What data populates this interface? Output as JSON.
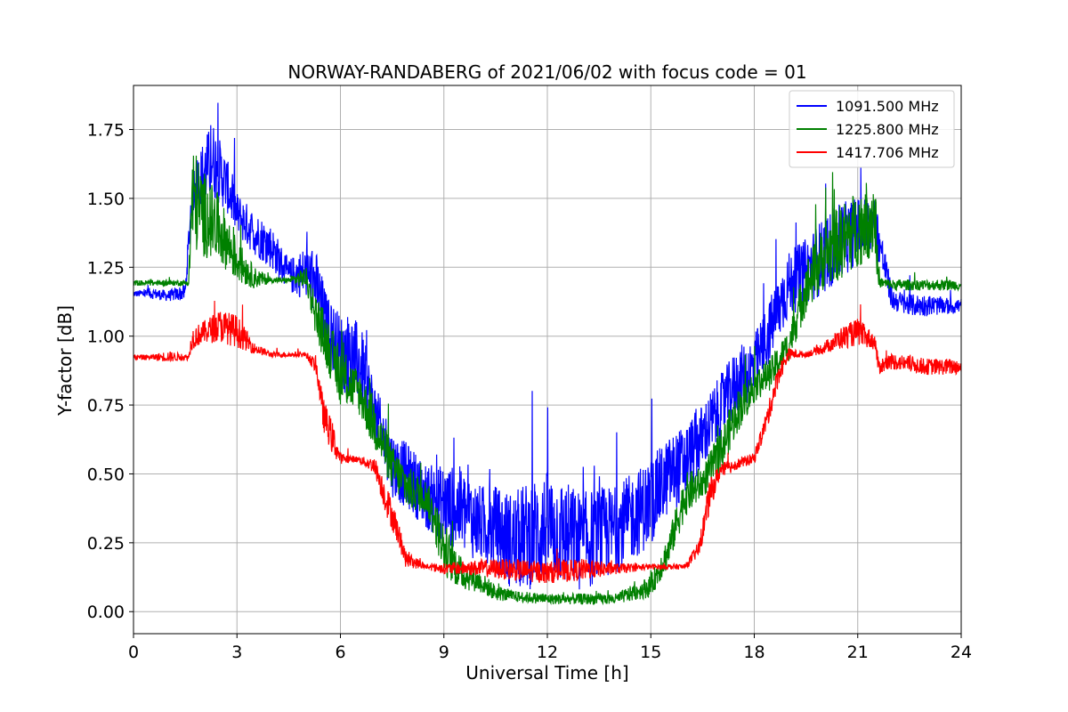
{
  "chart_data": {
    "type": "line",
    "title": "NORWAY-RANDABERG of 2021/06/02 with focus code = 01",
    "xlabel": "Universal Time [h]",
    "ylabel": "Y-factor [dB]",
    "xlim": [
      0,
      24
    ],
    "ylim": [
      -0.08,
      1.91
    ],
    "xticks": [
      0,
      3,
      6,
      9,
      12,
      15,
      18,
      21,
      24
    ],
    "xtick_labels": [
      "0",
      "3",
      "6",
      "9",
      "12",
      "15",
      "18",
      "21",
      "24"
    ],
    "yticks": [
      0.0,
      0.25,
      0.5,
      0.75,
      1.0,
      1.25,
      1.5,
      1.75
    ],
    "ytick_labels": [
      "0.00",
      "0.25",
      "0.50",
      "0.75",
      "1.00",
      "1.25",
      "1.50",
      "1.75"
    ],
    "grid": true,
    "legend_position": "top-right",
    "series": [
      {
        "name": "1091.500 MHz",
        "color": "#0000ff",
        "x": [
          0,
          0.5,
          1.0,
          1.5,
          1.7,
          2.0,
          2.3,
          2.7,
          3.0,
          3.5,
          4.0,
          4.5,
          5.0,
          5.3,
          5.6,
          6.0,
          6.3,
          6.6,
          7.0,
          7.5,
          8.0,
          8.5,
          9.0,
          9.5,
          10.0,
          10.5,
          11.0,
          11.5,
          12.0,
          12.5,
          13.0,
          13.5,
          14.0,
          14.5,
          15.0,
          15.5,
          16.0,
          16.5,
          17.0,
          17.5,
          18.0,
          18.5,
          19.0,
          19.5,
          20.0,
          20.5,
          21.0,
          21.5,
          22.0,
          22.5,
          23.0,
          23.5,
          24.0
        ],
        "y": [
          1.15,
          1.15,
          1.14,
          1.15,
          1.5,
          1.55,
          1.6,
          1.52,
          1.42,
          1.35,
          1.3,
          1.2,
          1.2,
          1.15,
          1.0,
          0.9,
          0.88,
          0.85,
          0.7,
          0.5,
          0.45,
          0.38,
          0.35,
          0.32,
          0.28,
          0.25,
          0.2,
          0.22,
          0.25,
          0.22,
          0.2,
          0.22,
          0.25,
          0.3,
          0.35,
          0.45,
          0.5,
          0.6,
          0.7,
          0.8,
          0.85,
          1.0,
          1.15,
          1.2,
          1.25,
          1.3,
          1.35,
          1.38,
          1.12,
          1.1,
          1.1,
          1.1,
          1.1
        ],
        "noise": [
          0.01,
          0.02,
          0.02,
          0.03,
          0.08,
          0.12,
          0.14,
          0.1,
          0.08,
          0.08,
          0.08,
          0.06,
          0.1,
          0.12,
          0.12,
          0.14,
          0.16,
          0.14,
          0.1,
          0.12,
          0.12,
          0.12,
          0.14,
          0.16,
          0.14,
          0.16,
          0.18,
          0.2,
          0.2,
          0.2,
          0.18,
          0.18,
          0.16,
          0.16,
          0.16,
          0.14,
          0.14,
          0.12,
          0.12,
          0.12,
          0.12,
          0.12,
          0.12,
          0.12,
          0.14,
          0.14,
          0.12,
          0.1,
          0.04,
          0.04,
          0.04,
          0.03,
          0.03
        ]
      },
      {
        "name": "1225.800 MHz",
        "color": "#008000",
        "x": [
          0,
          0.5,
          1.0,
          1.6,
          1.7,
          2.0,
          2.5,
          3.0,
          3.5,
          4.0,
          4.5,
          5.0,
          5.3,
          5.6,
          6.0,
          6.5,
          7.0,
          7.5,
          8.0,
          8.5,
          9.0,
          9.5,
          10.0,
          10.5,
          11.0,
          12.0,
          13.0,
          14.0,
          14.5,
          15.0,
          15.5,
          16.0,
          16.5,
          17.0,
          17.5,
          18.0,
          18.5,
          19.0,
          19.5,
          20.0,
          20.5,
          21.0,
          21.5,
          21.6,
          22.0,
          23.0,
          24.0
        ],
        "y": [
          1.19,
          1.19,
          1.19,
          1.19,
          1.45,
          1.4,
          1.35,
          1.25,
          1.2,
          1.2,
          1.2,
          1.2,
          1.05,
          0.95,
          0.82,
          0.78,
          0.65,
          0.5,
          0.42,
          0.4,
          0.2,
          0.12,
          0.1,
          0.06,
          0.05,
          0.04,
          0.04,
          0.04,
          0.06,
          0.08,
          0.2,
          0.4,
          0.45,
          0.55,
          0.7,
          0.8,
          0.85,
          0.95,
          1.15,
          1.25,
          1.3,
          1.35,
          1.4,
          1.19,
          1.18,
          1.18,
          1.18
        ],
        "noise": [
          0.01,
          0.01,
          0.01,
          0.01,
          0.2,
          0.16,
          0.12,
          0.08,
          0.04,
          0.01,
          0.01,
          0.04,
          0.08,
          0.1,
          0.1,
          0.08,
          0.1,
          0.08,
          0.08,
          0.06,
          0.1,
          0.06,
          0.04,
          0.03,
          0.02,
          0.02,
          0.02,
          0.02,
          0.03,
          0.04,
          0.06,
          0.08,
          0.06,
          0.08,
          0.08,
          0.06,
          0.06,
          0.06,
          0.1,
          0.12,
          0.14,
          0.14,
          0.16,
          0.02,
          0.02,
          0.02,
          0.02
        ]
      },
      {
        "name": "1417.706 MHz",
        "color": "#ff0000",
        "x": [
          0,
          0.5,
          1.0,
          1.6,
          1.7,
          2.0,
          2.5,
          3.0,
          3.5,
          4.0,
          4.5,
          5.0,
          5.3,
          5.5,
          5.8,
          6.0,
          6.5,
          7.0,
          7.3,
          7.6,
          7.9,
          8.5,
          9.0,
          10.0,
          11.0,
          12.0,
          13.0,
          14.0,
          15.0,
          16.0,
          16.4,
          16.7,
          17.0,
          17.5,
          18.0,
          18.4,
          18.7,
          19.0,
          19.5,
          20.0,
          20.5,
          21.0,
          21.5,
          21.6,
          22.0,
          23.0,
          24.0
        ],
        "y": [
          0.92,
          0.92,
          0.92,
          0.92,
          0.98,
          1.0,
          1.02,
          1.0,
          0.95,
          0.93,
          0.93,
          0.93,
          0.88,
          0.7,
          0.6,
          0.55,
          0.55,
          0.52,
          0.4,
          0.3,
          0.18,
          0.16,
          0.15,
          0.15,
          0.14,
          0.13,
          0.14,
          0.15,
          0.16,
          0.16,
          0.22,
          0.4,
          0.5,
          0.53,
          0.55,
          0.7,
          0.85,
          0.93,
          0.93,
          0.95,
          0.98,
          1.0,
          0.97,
          0.88,
          0.9,
          0.88,
          0.88
        ],
        "noise": [
          0.01,
          0.01,
          0.02,
          0.01,
          0.04,
          0.04,
          0.06,
          0.06,
          0.02,
          0.01,
          0.01,
          0.01,
          0.03,
          0.06,
          0.06,
          0.02,
          0.01,
          0.03,
          0.06,
          0.05,
          0.03,
          0.01,
          0.02,
          0.03,
          0.04,
          0.04,
          0.04,
          0.02,
          0.01,
          0.01,
          0.03,
          0.06,
          0.03,
          0.02,
          0.02,
          0.04,
          0.04,
          0.02,
          0.01,
          0.02,
          0.04,
          0.05,
          0.03,
          0.03,
          0.03,
          0.03,
          0.03
        ]
      }
    ]
  }
}
